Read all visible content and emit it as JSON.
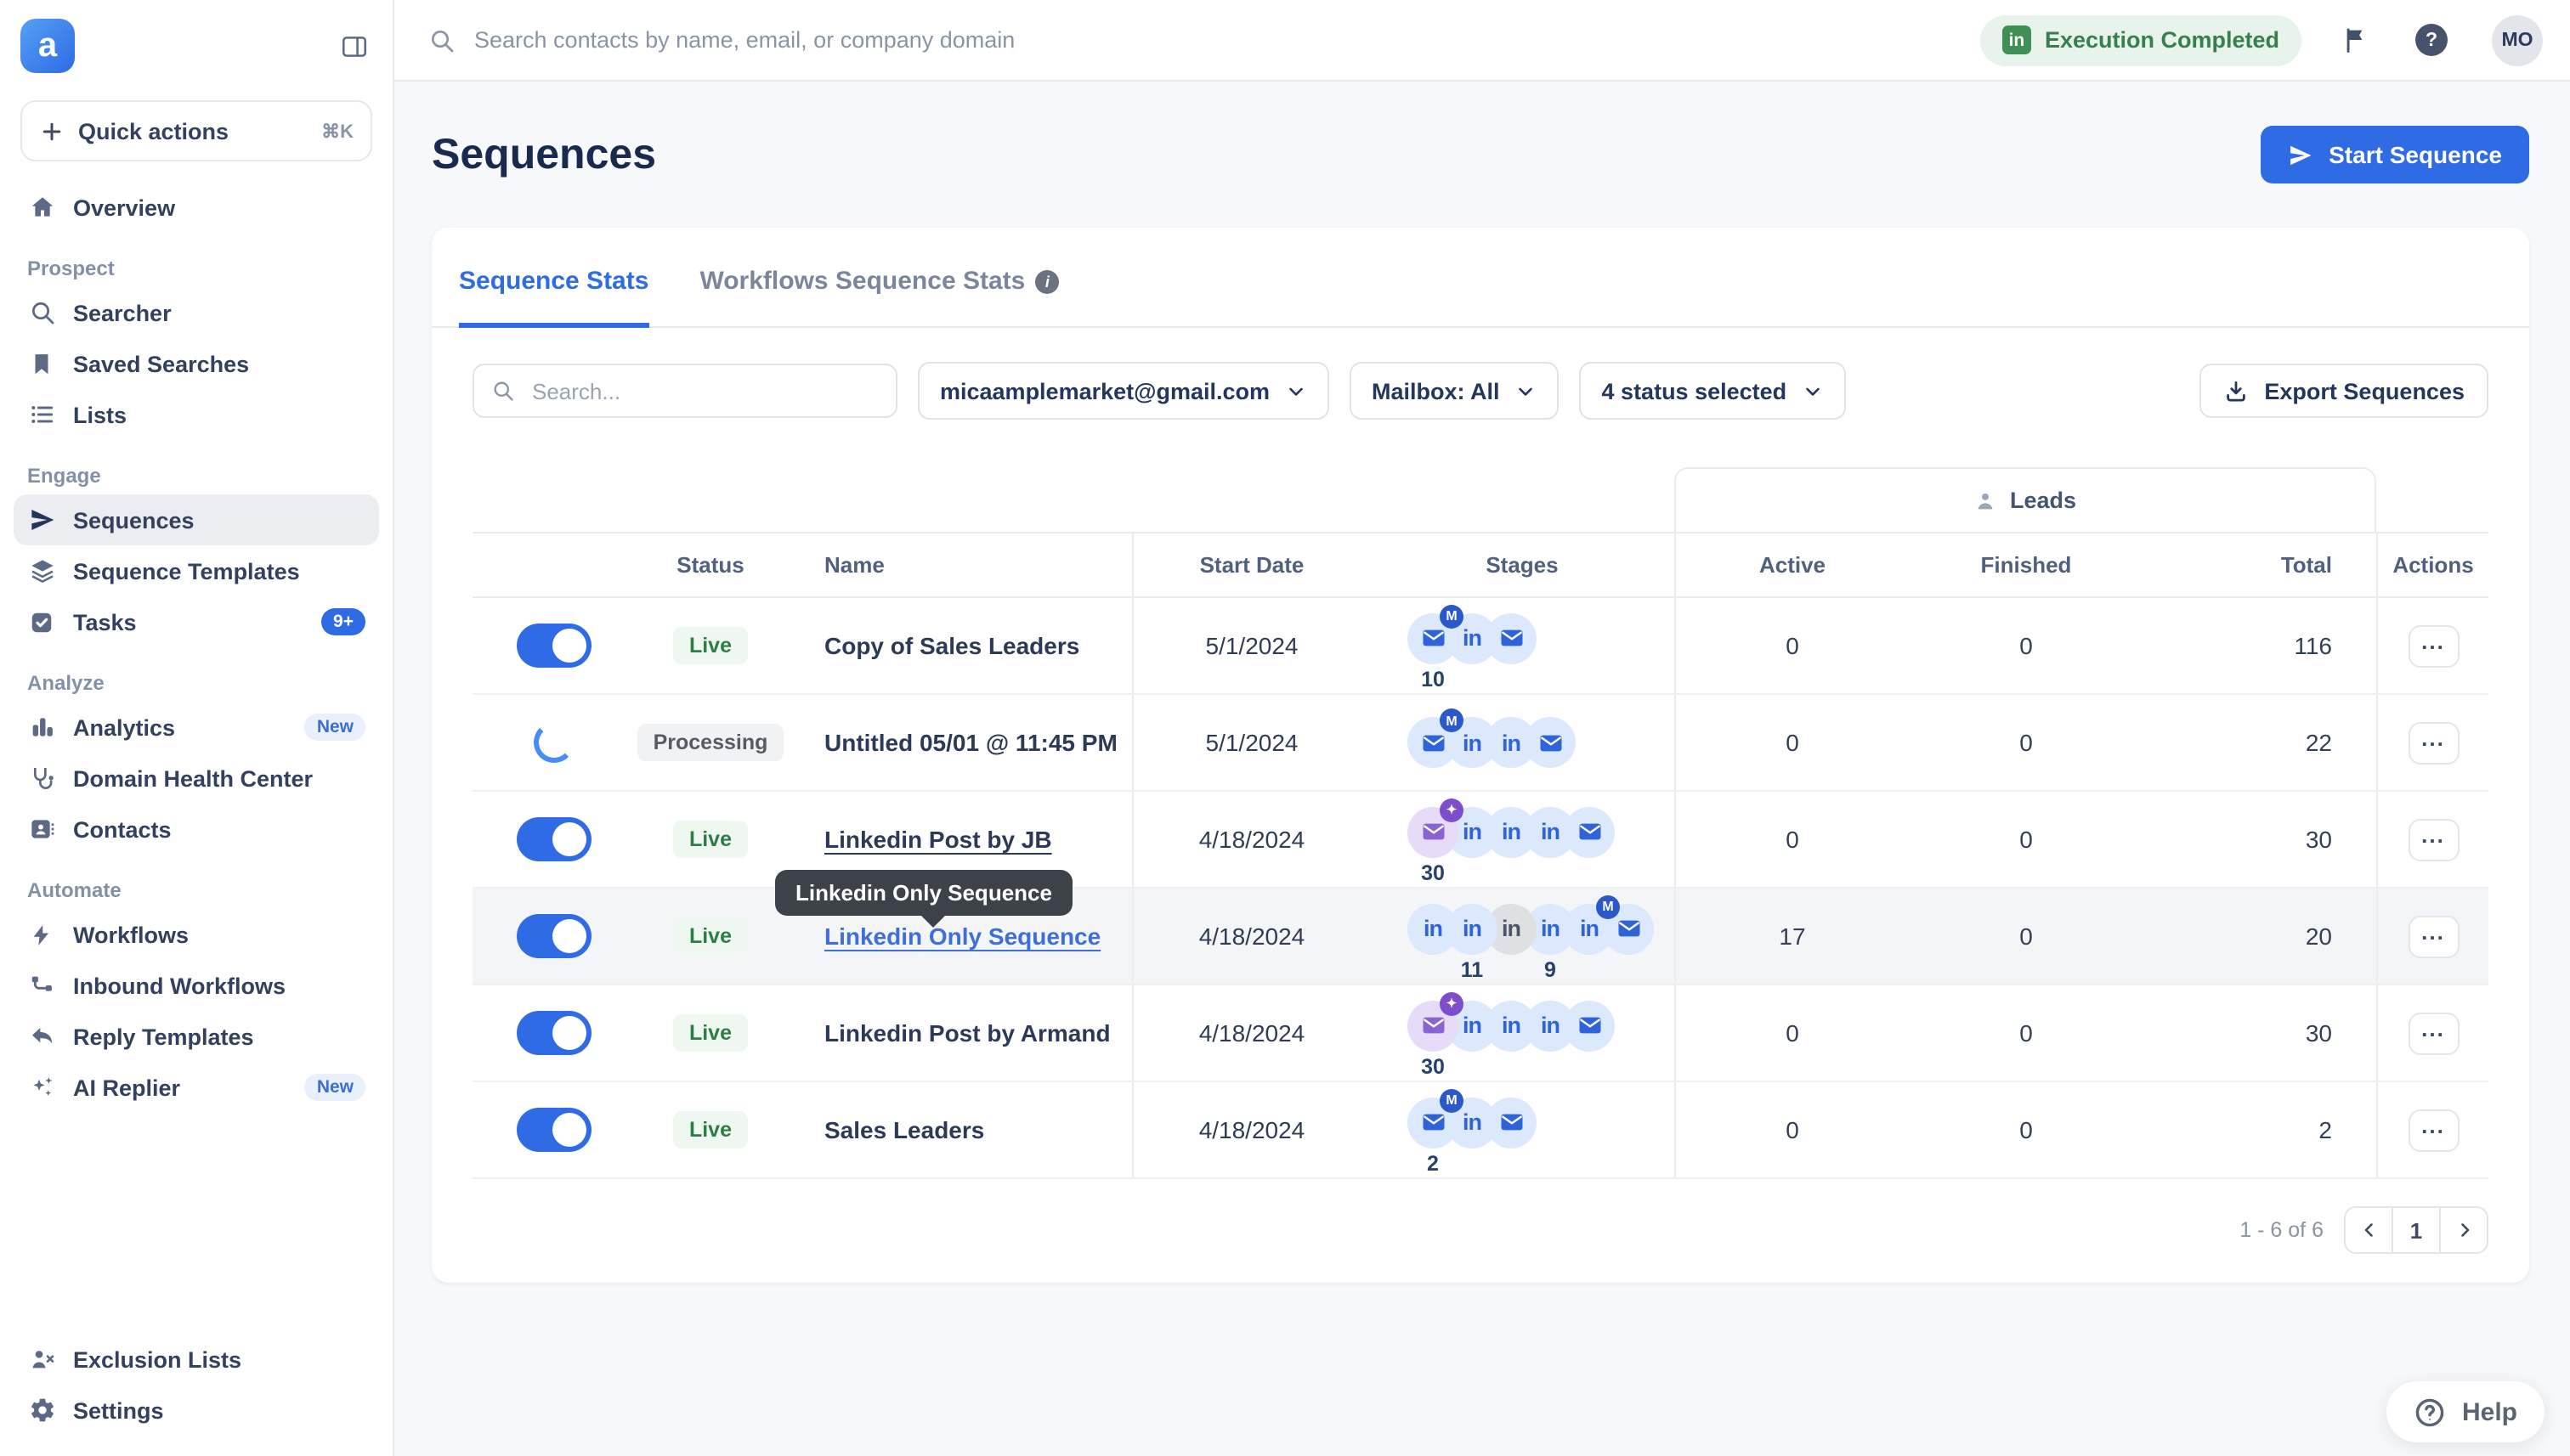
{
  "topbar": {
    "search_placeholder": "Search contacts by name, email, or company domain",
    "status_label": "Execution Completed",
    "status_icon": "linkedin-icon",
    "avatar": "MO",
    "colors": {
      "status_text": "#37804e",
      "status_bg": "#e7f3eb"
    }
  },
  "sidebar": {
    "logo_letter": "a",
    "quick_actions": {
      "label": "Quick actions",
      "shortcut": "⌘K"
    },
    "sections": [
      {
        "label": "",
        "items": [
          {
            "label": "Overview",
            "icon": "home-icon"
          }
        ]
      },
      {
        "label": "Prospect",
        "items": [
          {
            "label": "Searcher",
            "icon": "search-icon"
          },
          {
            "label": "Saved Searches",
            "icon": "bookmark-icon"
          },
          {
            "label": "Lists",
            "icon": "list-icon"
          }
        ]
      },
      {
        "label": "Engage",
        "items": [
          {
            "label": "Sequences",
            "icon": "paper-plane-icon",
            "active": true
          },
          {
            "label": "Sequence Templates",
            "icon": "layers-icon"
          },
          {
            "label": "Tasks",
            "icon": "check-square-icon",
            "badge": "9+",
            "badge_style": "solid"
          }
        ]
      },
      {
        "label": "Analyze",
        "items": [
          {
            "label": "Analytics",
            "icon": "bar-chart-icon",
            "badge": "New",
            "badge_style": "soft"
          },
          {
            "label": "Domain Health Center",
            "icon": "stethoscope-icon"
          },
          {
            "label": "Contacts",
            "icon": "contact-card-icon"
          }
        ]
      },
      {
        "label": "Automate",
        "items": [
          {
            "label": "Workflows",
            "icon": "zap-icon"
          },
          {
            "label": "Inbound Workflows",
            "icon": "branch-icon"
          },
          {
            "label": "Reply Templates",
            "icon": "reply-icon"
          },
          {
            "label": "AI Replier",
            "icon": "sparkles-icon",
            "badge": "New",
            "badge_style": "soft"
          }
        ]
      }
    ],
    "footer_items": [
      {
        "label": "Exclusion Lists",
        "icon": "person-x-icon"
      },
      {
        "label": "Settings",
        "icon": "gear-icon"
      }
    ]
  },
  "page": {
    "title": "Sequences",
    "start_button": "Start Sequence"
  },
  "tabs": [
    {
      "label": "Sequence Stats",
      "active": true
    },
    {
      "label": "Workflows Sequence Stats",
      "info": true
    }
  ],
  "filters": {
    "search_placeholder": "Search...",
    "account": "micaamplemarket@gmail.com",
    "mailbox": "Mailbox: All",
    "status": "4 status selected",
    "export_label": "Export Sequences"
  },
  "table": {
    "leads_group": "Leads",
    "headers": {
      "status": "Status",
      "name": "Name",
      "start_date": "Start Date",
      "stages": "Stages",
      "active": "Active",
      "finished": "Finished",
      "total": "Total",
      "actions": "Actions"
    },
    "rows": [
      {
        "toggle": "on",
        "status": "Live",
        "status_style": "live",
        "name": "Copy of Sales Leaders",
        "date": "5/1/2024",
        "active": "0",
        "finished": "0",
        "total": "116",
        "stages": [
          {
            "icon": "mail",
            "variant": "blue",
            "badge": "m",
            "count": "10"
          },
          {
            "icon": "linkedin",
            "variant": "blue"
          },
          {
            "icon": "mail",
            "variant": "blue"
          }
        ]
      },
      {
        "toggle": "processing",
        "status": "Processing",
        "status_style": "processing",
        "name": "Untitled 05/01 @ 11:45 PM",
        "date": "5/1/2024",
        "active": "0",
        "finished": "0",
        "total": "22",
        "stages": [
          {
            "icon": "mail",
            "variant": "blue",
            "badge": "m"
          },
          {
            "icon": "linkedin",
            "variant": "blue"
          },
          {
            "icon": "linkedin",
            "variant": "blue"
          },
          {
            "icon": "mail",
            "variant": "blue"
          }
        ]
      },
      {
        "toggle": "on",
        "status": "Live",
        "status_style": "live",
        "name": "Linkedin Post by JB",
        "name_style": "underline",
        "date": "4/18/2024",
        "active": "0",
        "finished": "0",
        "total": "30",
        "stages": [
          {
            "icon": "mail",
            "variant": "purple",
            "badge": "ai",
            "count": "30"
          },
          {
            "icon": "linkedin",
            "variant": "blue"
          },
          {
            "icon": "linkedin",
            "variant": "blue"
          },
          {
            "icon": "linkedin",
            "variant": "blue"
          },
          {
            "icon": "mail",
            "variant": "blue"
          }
        ]
      },
      {
        "toggle": "on",
        "status": "Live",
        "status_style": "live",
        "name": "Linkedin Only Sequence",
        "name_style": "link",
        "highlight": true,
        "tooltip": "Linkedin Only Sequence",
        "date": "4/18/2024",
        "active": "17",
        "finished": "0",
        "total": "20",
        "stages": [
          {
            "icon": "linkedin",
            "variant": "blue"
          },
          {
            "icon": "linkedin",
            "variant": "blue",
            "count": "11"
          },
          {
            "icon": "linkedin",
            "variant": "gray"
          },
          {
            "icon": "linkedin",
            "variant": "blue",
            "count": "9"
          },
          {
            "icon": "linkedin",
            "variant": "blue",
            "badge": "m"
          },
          {
            "icon": "mail",
            "variant": "blue"
          }
        ]
      },
      {
        "toggle": "on",
        "status": "Live",
        "status_style": "live",
        "name": "Linkedin Post by Armand",
        "date": "4/18/2024",
        "active": "0",
        "finished": "0",
        "total": "30",
        "stages": [
          {
            "icon": "mail",
            "variant": "purple",
            "badge": "ai",
            "count": "30"
          },
          {
            "icon": "linkedin",
            "variant": "blue"
          },
          {
            "icon": "linkedin",
            "variant": "blue"
          },
          {
            "icon": "linkedin",
            "variant": "blue"
          },
          {
            "icon": "mail",
            "variant": "blue"
          }
        ]
      },
      {
        "toggle": "on",
        "status": "Live",
        "status_style": "live",
        "name": "Sales Leaders",
        "date": "4/18/2024",
        "active": "0",
        "finished": "0",
        "total": "2",
        "stages": [
          {
            "icon": "mail",
            "variant": "blue",
            "badge": "m",
            "count": "2"
          },
          {
            "icon": "linkedin",
            "variant": "blue"
          },
          {
            "icon": "mail",
            "variant": "blue"
          }
        ]
      }
    ]
  },
  "pagination": {
    "range": "1 - 6 of 6",
    "page": "1"
  },
  "help": {
    "label": "Help"
  },
  "colors": {
    "primary": "#2e6be5",
    "stage_blue_bg": "#dce8fc",
    "stage_purple_bg": "#e6dcf7",
    "live_green": "#2e7d46",
    "badge_m": "#2b59c9",
    "badge_ai": "#7c4ecb"
  }
}
